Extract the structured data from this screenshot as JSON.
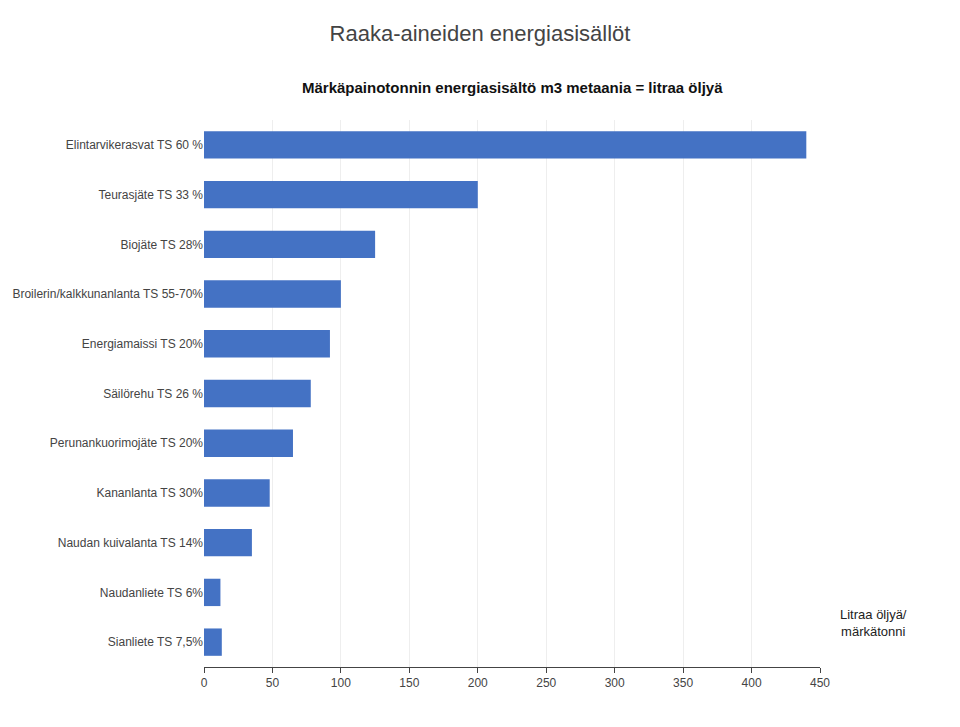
{
  "chart_data": {
    "type": "bar",
    "orientation": "horizontal",
    "title": "Raaka-aineiden energiasisällöt",
    "subtitle": "Märkäpainotonnin energiasisältö m3 metaania = litraa öljyä",
    "xlabel": "Litraa öljyä/\nmärkätonni",
    "categories": [
      "Elintarvikerasvat TS 60 %",
      "Teurasjäte TS 33 %",
      "Biojäte TS 28%",
      "Broilerin/kalkkunanlanta TS 55-70%",
      "Energiamaissi TS 20%",
      "Säilörehu TS 26 %",
      "Perunankuorimojäte TS 20%",
      "Kananlanta TS 30%",
      "Naudan kuivalanta TS 14%",
      "Naudanliete TS 6%",
      "Sianliete TS 7,5%"
    ],
    "values": [
      440,
      200,
      125,
      100,
      92,
      78,
      65,
      48,
      35,
      12,
      13
    ],
    "color": "#4472C4",
    "xlim": [
      0,
      450
    ],
    "xticks": [
      0,
      50,
      100,
      150,
      200,
      250,
      300,
      350,
      400,
      450
    ],
    "grid": true
  }
}
